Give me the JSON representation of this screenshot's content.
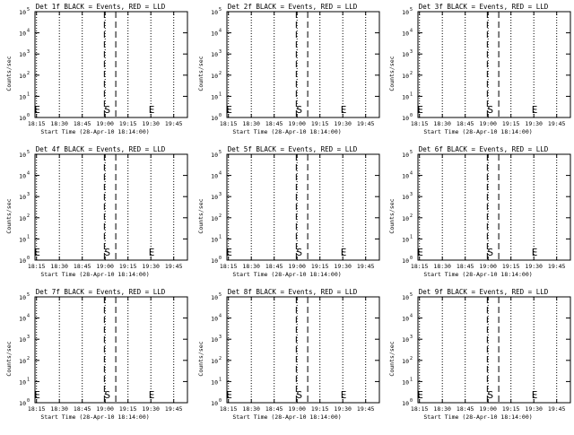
{
  "shared": {
    "type": "line",
    "xlabel": "Start Time (28-Apr-10 18:14:00)",
    "ylabel": "Counts/sec",
    "x_ticks": [
      "18:15",
      "18:30",
      "18:45",
      "19:00",
      "19:15",
      "19:30",
      "19:45"
    ],
    "x_tick_minutes": [
      1,
      16,
      31,
      46,
      61,
      76,
      91
    ],
    "xlim_minutes": [
      0,
      100
    ],
    "y_tick_base": "10",
    "y_tick_exponents": [
      "0",
      "1",
      "2",
      "3",
      "4",
      "5"
    ],
    "ylim": [
      1,
      100000
    ],
    "y_scale": "log",
    "dotted_lines_minutes": [
      1,
      16,
      31,
      46,
      61,
      76,
      91
    ],
    "dashed_lines_minutes": [
      45.5,
      53
    ],
    "markers": [
      {
        "label": "E",
        "minute": 1.5
      },
      {
        "label": "S",
        "minute": 47.5
      },
      {
        "label": "E",
        "minute": 76.5
      }
    ]
  },
  "chart_data": [
    {
      "title": "Det 1f BLACK = Events, RED = LLD"
    },
    {
      "title": "Det 2f BLACK = Events, RED = LLD"
    },
    {
      "title": "Det 3f BLACK = Events, RED = LLD"
    },
    {
      "title": "Det 4f BLACK = Events, RED = LLD"
    },
    {
      "title": "Det 5f BLACK = Events, RED = LLD"
    },
    {
      "title": "Det 6f BLACK = Events, RED = LLD"
    },
    {
      "title": "Det 7f BLACK = Events, RED = LLD"
    },
    {
      "title": "Det 8f BLACK = Events, RED = LLD"
    },
    {
      "title": "Det 9f BLACK = Events, RED = LLD"
    }
  ]
}
